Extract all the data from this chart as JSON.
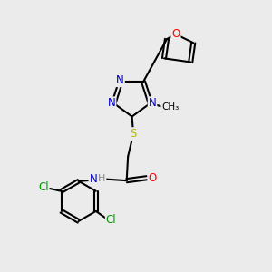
{
  "bg_color": "#ebebeb",
  "bond_color": "#000000",
  "bond_width": 1.5,
  "atom_colors": {
    "N": "#0000cc",
    "O": "#ff0000",
    "S": "#bbbb00",
    "Cl": "#009900",
    "C": "#000000",
    "H": "#888888"
  },
  "font_size": 8.5,
  "title": ""
}
